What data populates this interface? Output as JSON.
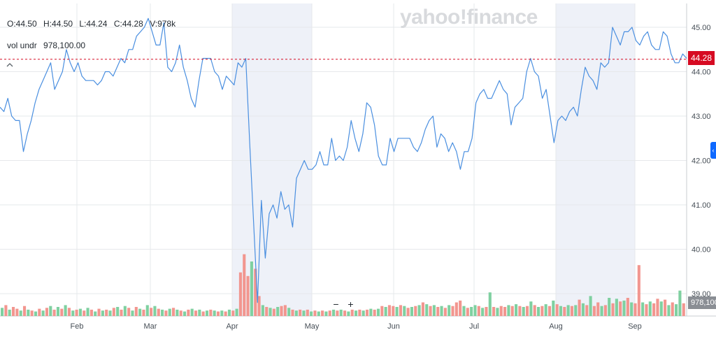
{
  "ohlc": {
    "open": "O:44.50",
    "high": "H:44.50",
    "low": "L:44.24",
    "close": "C:44.28",
    "volume": "V:978k"
  },
  "volume_row": {
    "label": "vol undr",
    "value": "978,100.00"
  },
  "brand": "yahoo!finance",
  "last_price_label": "44.28",
  "last_volume_label": "978,100",
  "collapse_icon": "chevron-up-icon",
  "zoom": {
    "minus": "−",
    "plus": "+"
  },
  "colors": {
    "line": "#4a8fe0",
    "last_price": "#d60a22",
    "vol_up": "#7fd0a0",
    "vol_down": "#f2968f",
    "shade": "#eef1f8",
    "grid": "#e6e8eb"
  },
  "chart_data": {
    "type": "line",
    "xlabel": "",
    "ylabel": "",
    "ylim": [
      38.75,
      45.3
    ],
    "y_ticks": [
      39.0,
      40.0,
      41.0,
      42.0,
      43.0,
      44.0,
      45.0
    ],
    "y_tick_labels": [
      "39.00",
      "40.00",
      "41.00",
      "42.00",
      "43.00",
      "44.00",
      "45.00"
    ],
    "x_tick_labels": [
      "Feb",
      "Mar",
      "Apr",
      "May",
      "Jun",
      "Jul",
      "Aug",
      "Sep"
    ],
    "shaded_months": [
      "Apr",
      "Aug"
    ],
    "grid": true,
    "last_price": 44.28,
    "series": [
      {
        "type": "line",
        "values": [
          43.2,
          43.1,
          43.4,
          43.0,
          42.9,
          42.9,
          42.2,
          42.6,
          42.9,
          43.3,
          43.6,
          43.8,
          44.0,
          44.2,
          43.6,
          43.8,
          44.0,
          44.5,
          44.2,
          44.0,
          44.2,
          43.9,
          43.8,
          43.8,
          43.8,
          43.7,
          43.8,
          44.0,
          44.0,
          43.9,
          44.1,
          44.3,
          44.2,
          44.5,
          44.5,
          44.8,
          44.9,
          45.0,
          45.2,
          44.9,
          44.6,
          44.6,
          45.1,
          44.1,
          44.0,
          44.2,
          44.6,
          44.1,
          43.8,
          43.4,
          43.2,
          43.8,
          44.3,
          44.3,
          44.3,
          44.0,
          43.9,
          43.6,
          43.9,
          43.8,
          43.7,
          44.2,
          44.1,
          44.3,
          42.4,
          40.6,
          38.8,
          41.1,
          39.8,
          40.8,
          41.0,
          40.7,
          41.3,
          40.9,
          41.0,
          40.5,
          41.6,
          41.8,
          42.0,
          41.8,
          41.8,
          41.9,
          42.2,
          41.9,
          41.9,
          42.5,
          42.0,
          42.1,
          42.0,
          42.3,
          42.9,
          42.5,
          42.2,
          42.6,
          43.3,
          43.2,
          42.8,
          42.1,
          41.9,
          41.9,
          42.5,
          42.2,
          42.5,
          42.5,
          42.5,
          42.5,
          42.3,
          42.2,
          42.4,
          42.7,
          42.9,
          43.0,
          42.3,
          42.6,
          42.5,
          42.2,
          42.4,
          42.2,
          41.8,
          42.2,
          42.2,
          42.5,
          43.3,
          43.5,
          43.6,
          43.4,
          43.4,
          43.6,
          43.8,
          43.6,
          43.5,
          42.8,
          43.2,
          43.3,
          43.4,
          44.0,
          44.3,
          44.0,
          43.9,
          43.4,
          43.6,
          43.0,
          42.4,
          42.9,
          43.0,
          42.9,
          43.1,
          43.2,
          43.0,
          43.6,
          44.1,
          43.9,
          43.8,
          43.6,
          44.2,
          44.1,
          44.2,
          45.0,
          44.8,
          44.6,
          44.9,
          44.9,
          45.0,
          44.7,
          44.6,
          44.8,
          44.9,
          44.6,
          44.5,
          44.5,
          44.9,
          44.8,
          44.4,
          44.2,
          44.2,
          44.4,
          44.3
        ]
      }
    ],
    "volume_bars": [
      {
        "v": 0.45,
        "d": "up"
      },
      {
        "v": 0.6,
        "d": "down"
      },
      {
        "v": 0.35,
        "d": "up"
      },
      {
        "v": 0.5,
        "d": "down"
      },
      {
        "v": 0.4,
        "d": "down"
      },
      {
        "v": 0.3,
        "d": "up"
      },
      {
        "v": 0.55,
        "d": "down"
      },
      {
        "v": 0.35,
        "d": "up"
      },
      {
        "v": 0.3,
        "d": "down"
      },
      {
        "v": 0.25,
        "d": "up"
      },
      {
        "v": 0.4,
        "d": "down"
      },
      {
        "v": 0.3,
        "d": "up"
      },
      {
        "v": 0.45,
        "d": "down"
      },
      {
        "v": 0.55,
        "d": "up"
      },
      {
        "v": 0.35,
        "d": "down"
      },
      {
        "v": 0.5,
        "d": "up"
      },
      {
        "v": 0.4,
        "d": "down"
      },
      {
        "v": 0.6,
        "d": "up"
      },
      {
        "v": 0.45,
        "d": "down"
      },
      {
        "v": 0.3,
        "d": "up"
      },
      {
        "v": 0.35,
        "d": "down"
      },
      {
        "v": 0.4,
        "d": "up"
      },
      {
        "v": 0.3,
        "d": "down"
      },
      {
        "v": 0.45,
        "d": "up"
      },
      {
        "v": 0.35,
        "d": "down"
      },
      {
        "v": 0.25,
        "d": "up"
      },
      {
        "v": 0.4,
        "d": "down"
      },
      {
        "v": 0.3,
        "d": "up"
      },
      {
        "v": 0.35,
        "d": "down"
      },
      {
        "v": 0.3,
        "d": "up"
      },
      {
        "v": 0.45,
        "d": "down"
      },
      {
        "v": 0.5,
        "d": "up"
      },
      {
        "v": 0.35,
        "d": "down"
      },
      {
        "v": 0.55,
        "d": "up"
      },
      {
        "v": 0.45,
        "d": "down"
      },
      {
        "v": 0.3,
        "d": "up"
      },
      {
        "v": 0.5,
        "d": "down"
      },
      {
        "v": 0.4,
        "d": "up"
      },
      {
        "v": 0.35,
        "d": "down"
      },
      {
        "v": 0.6,
        "d": "up"
      },
      {
        "v": 0.45,
        "d": "down"
      },
      {
        "v": 0.55,
        "d": "up"
      },
      {
        "v": 0.4,
        "d": "down"
      },
      {
        "v": 0.35,
        "d": "up"
      },
      {
        "v": 0.3,
        "d": "down"
      },
      {
        "v": 0.4,
        "d": "up"
      },
      {
        "v": 0.45,
        "d": "down"
      },
      {
        "v": 0.35,
        "d": "up"
      },
      {
        "v": 0.3,
        "d": "down"
      },
      {
        "v": 0.25,
        "d": "up"
      },
      {
        "v": 0.35,
        "d": "down"
      },
      {
        "v": 0.4,
        "d": "up"
      },
      {
        "v": 0.3,
        "d": "down"
      },
      {
        "v": 0.35,
        "d": "up"
      },
      {
        "v": 0.25,
        "d": "down"
      },
      {
        "v": 0.3,
        "d": "up"
      },
      {
        "v": 0.35,
        "d": "down"
      },
      {
        "v": 0.3,
        "d": "up"
      },
      {
        "v": 0.25,
        "d": "down"
      },
      {
        "v": 0.3,
        "d": "up"
      },
      {
        "v": 0.25,
        "d": "down"
      },
      {
        "v": 0.35,
        "d": "up"
      },
      {
        "v": 0.3,
        "d": "down"
      },
      {
        "v": 0.4,
        "d": "up"
      },
      {
        "v": 2.4,
        "d": "down"
      },
      {
        "v": 3.4,
        "d": "down"
      },
      {
        "v": 2.2,
        "d": "down"
      },
      {
        "v": 3.0,
        "d": "up"
      },
      {
        "v": 2.6,
        "d": "down"
      },
      {
        "v": 1.1,
        "d": "down"
      },
      {
        "v": 0.6,
        "d": "up"
      },
      {
        "v": 0.5,
        "d": "down"
      },
      {
        "v": 0.45,
        "d": "up"
      },
      {
        "v": 0.4,
        "d": "down"
      },
      {
        "v": 0.5,
        "d": "up"
      },
      {
        "v": 0.55,
        "d": "down"
      },
      {
        "v": 0.6,
        "d": "down"
      },
      {
        "v": 0.45,
        "d": "up"
      },
      {
        "v": 0.35,
        "d": "down"
      },
      {
        "v": 0.3,
        "d": "up"
      },
      {
        "v": 0.35,
        "d": "down"
      },
      {
        "v": 0.3,
        "d": "up"
      },
      {
        "v": 0.35,
        "d": "down"
      },
      {
        "v": 0.25,
        "d": "up"
      },
      {
        "v": 0.3,
        "d": "down"
      },
      {
        "v": 0.25,
        "d": "up"
      },
      {
        "v": 0.3,
        "d": "down"
      },
      {
        "v": 0.25,
        "d": "up"
      },
      {
        "v": 0.3,
        "d": "down"
      },
      {
        "v": 0.35,
        "d": "up"
      },
      {
        "v": 0.3,
        "d": "down"
      },
      {
        "v": 0.35,
        "d": "up"
      },
      {
        "v": 0.3,
        "d": "down"
      },
      {
        "v": 0.25,
        "d": "up"
      },
      {
        "v": 0.35,
        "d": "down"
      },
      {
        "v": 0.3,
        "d": "up"
      },
      {
        "v": 0.35,
        "d": "down"
      },
      {
        "v": 0.3,
        "d": "up"
      },
      {
        "v": 0.35,
        "d": "down"
      },
      {
        "v": 0.4,
        "d": "up"
      },
      {
        "v": 0.35,
        "d": "down"
      },
      {
        "v": 0.4,
        "d": "up"
      },
      {
        "v": 0.55,
        "d": "down"
      },
      {
        "v": 0.5,
        "d": "up"
      },
      {
        "v": 0.6,
        "d": "down"
      },
      {
        "v": 0.55,
        "d": "down"
      },
      {
        "v": 0.5,
        "d": "up"
      },
      {
        "v": 0.6,
        "d": "down"
      },
      {
        "v": 0.55,
        "d": "up"
      },
      {
        "v": 0.45,
        "d": "down"
      },
      {
        "v": 0.5,
        "d": "up"
      },
      {
        "v": 0.55,
        "d": "down"
      },
      {
        "v": 0.6,
        "d": "up"
      },
      {
        "v": 0.75,
        "d": "down"
      },
      {
        "v": 0.65,
        "d": "up"
      },
      {
        "v": 0.55,
        "d": "down"
      },
      {
        "v": 0.6,
        "d": "up"
      },
      {
        "v": 0.5,
        "d": "down"
      },
      {
        "v": 0.55,
        "d": "up"
      },
      {
        "v": 0.45,
        "d": "down"
      },
      {
        "v": 0.6,
        "d": "up"
      },
      {
        "v": 0.55,
        "d": "down"
      },
      {
        "v": 0.75,
        "d": "down"
      },
      {
        "v": 0.85,
        "d": "down"
      },
      {
        "v": 0.55,
        "d": "up"
      },
      {
        "v": 0.45,
        "d": "down"
      },
      {
        "v": 0.5,
        "d": "up"
      },
      {
        "v": 0.6,
        "d": "up"
      },
      {
        "v": 0.55,
        "d": "down"
      },
      {
        "v": 0.45,
        "d": "up"
      },
      {
        "v": 0.5,
        "d": "down"
      },
      {
        "v": 1.3,
        "d": "up"
      },
      {
        "v": 0.5,
        "d": "down"
      },
      {
        "v": 0.45,
        "d": "up"
      },
      {
        "v": 0.55,
        "d": "down"
      },
      {
        "v": 0.5,
        "d": "down"
      },
      {
        "v": 0.6,
        "d": "up"
      },
      {
        "v": 0.55,
        "d": "down"
      },
      {
        "v": 0.65,
        "d": "up"
      },
      {
        "v": 0.55,
        "d": "down"
      },
      {
        "v": 0.5,
        "d": "up"
      },
      {
        "v": 0.55,
        "d": "down"
      },
      {
        "v": 0.8,
        "d": "up"
      },
      {
        "v": 0.6,
        "d": "down"
      },
      {
        "v": 0.5,
        "d": "up"
      },
      {
        "v": 0.55,
        "d": "down"
      },
      {
        "v": 0.65,
        "d": "up"
      },
      {
        "v": 0.55,
        "d": "down"
      },
      {
        "v": 0.85,
        "d": "up"
      },
      {
        "v": 0.65,
        "d": "down"
      },
      {
        "v": 0.55,
        "d": "up"
      },
      {
        "v": 0.5,
        "d": "down"
      },
      {
        "v": 0.6,
        "d": "up"
      },
      {
        "v": 0.55,
        "d": "down"
      },
      {
        "v": 0.6,
        "d": "up"
      },
      {
        "v": 0.9,
        "d": "down"
      },
      {
        "v": 0.7,
        "d": "up"
      },
      {
        "v": 0.6,
        "d": "down"
      },
      {
        "v": 1.1,
        "d": "up"
      },
      {
        "v": 0.55,
        "d": "down"
      },
      {
        "v": 0.75,
        "d": "down"
      },
      {
        "v": 0.55,
        "d": "up"
      },
      {
        "v": 0.6,
        "d": "down"
      },
      {
        "v": 1.0,
        "d": "up"
      },
      {
        "v": 0.7,
        "d": "down"
      },
      {
        "v": 0.95,
        "d": "up"
      },
      {
        "v": 0.8,
        "d": "down"
      },
      {
        "v": 0.85,
        "d": "up"
      },
      {
        "v": 1.0,
        "d": "down"
      },
      {
        "v": 0.75,
        "d": "up"
      },
      {
        "v": 0.7,
        "d": "down"
      },
      {
        "v": 2.8,
        "d": "down"
      },
      {
        "v": 0.75,
        "d": "up"
      },
      {
        "v": 0.65,
        "d": "down"
      },
      {
        "v": 0.8,
        "d": "up"
      },
      {
        "v": 0.7,
        "d": "down"
      },
      {
        "v": 0.95,
        "d": "down"
      },
      {
        "v": 0.8,
        "d": "up"
      },
      {
        "v": 0.9,
        "d": "down"
      },
      {
        "v": 0.6,
        "d": "up"
      },
      {
        "v": 0.75,
        "d": "down"
      },
      {
        "v": 0.65,
        "d": "up"
      },
      {
        "v": 1.4,
        "d": "up"
      },
      {
        "v": 0.7,
        "d": "down"
      }
    ]
  }
}
